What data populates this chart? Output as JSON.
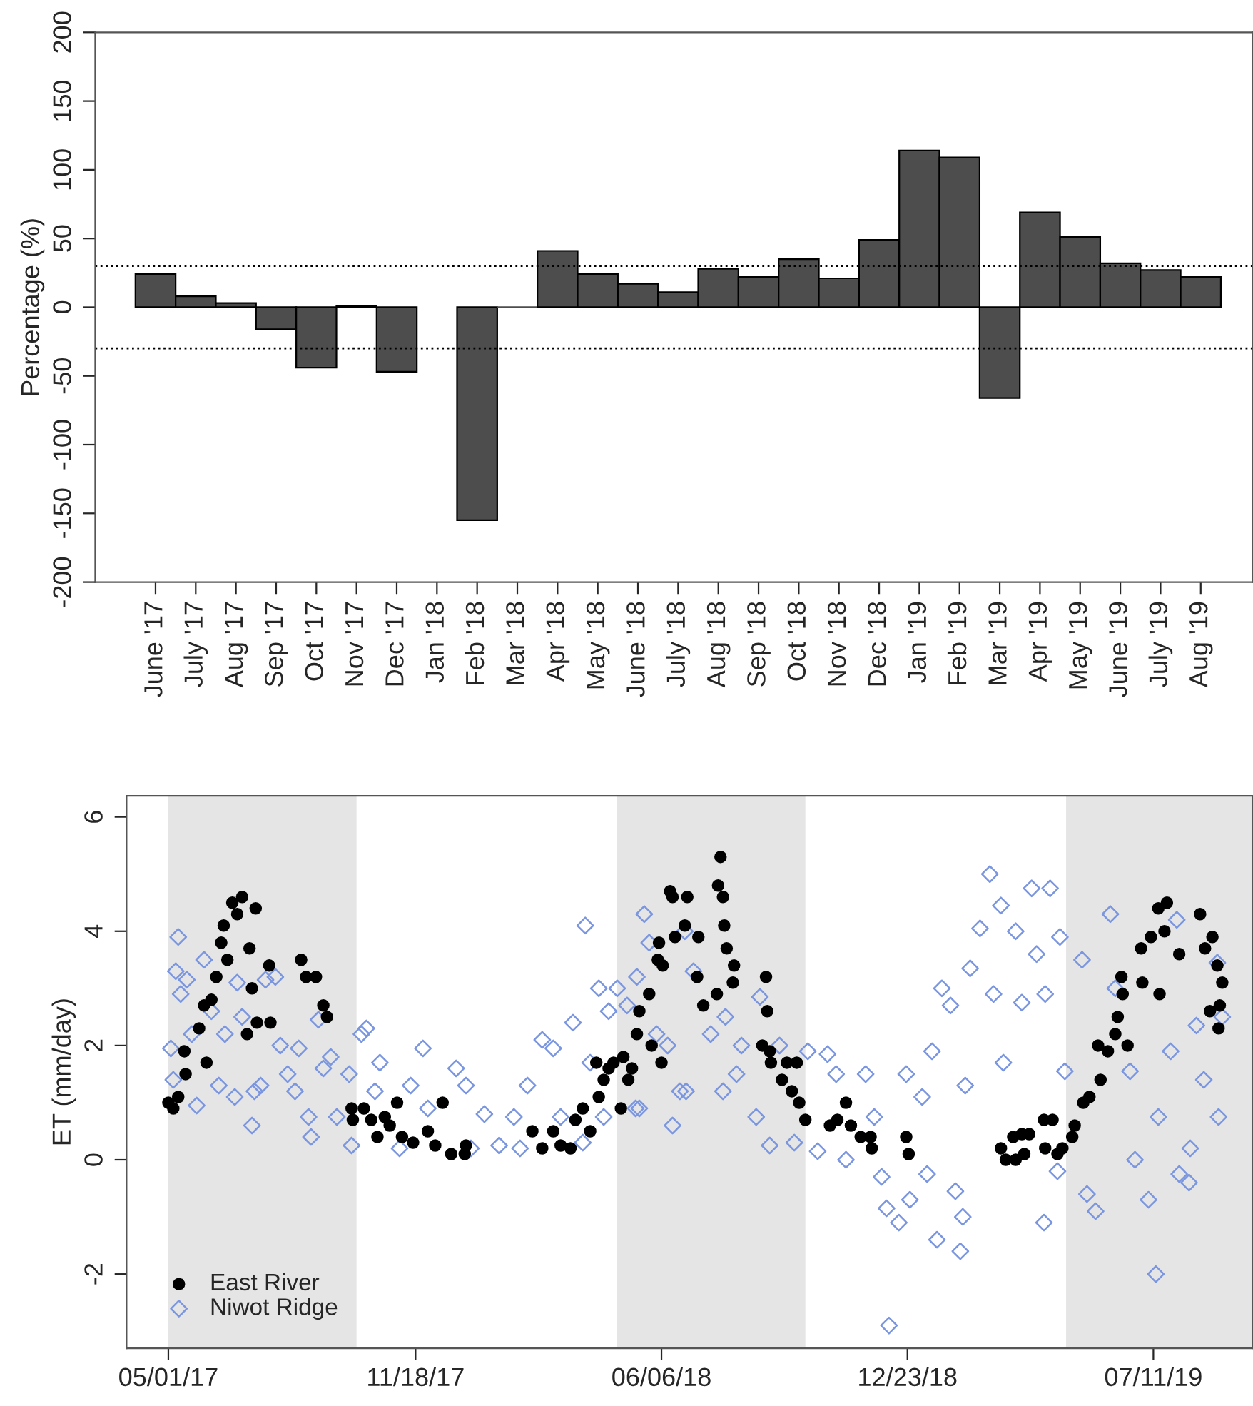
{
  "chart_data": [
    {
      "type": "bar",
      "ylabel": "Percentage (%)",
      "categories": [
        "June '17",
        "July '17",
        "Aug '17",
        "Sep '17",
        "Oct '17",
        "Nov '17",
        "Dec '17",
        "Jan '18",
        "Feb '18",
        "Mar '18",
        "Apr '18",
        "May '18",
        "June '18",
        "July '18",
        "Aug '18",
        "Sep '18",
        "Oct '18",
        "Nov '18",
        "Dec '18",
        "Jan '19",
        "Feb '19",
        "Mar '19",
        "Apr '19",
        "May '19",
        "June '19",
        "July '19",
        "Aug '19"
      ],
      "series": [
        {
          "color": "#4d4d4d",
          "values": [
            24,
            8,
            3,
            -16,
            -44,
            1,
            -47,
            null,
            -155,
            0,
            41,
            24,
            17,
            11,
            28,
            22,
            35,
            21,
            49,
            114,
            109,
            -66,
            69,
            51,
            32,
            27,
            22
          ]
        }
      ],
      "ylim": [
        -200,
        200
      ],
      "yticks": [
        -200,
        -150,
        -100,
        -50,
        0,
        50,
        100,
        150,
        200
      ],
      "ref_lines": [
        {
          "axis": "y",
          "value": 30,
          "color": "#000000",
          "line_style": "dotted"
        },
        {
          "axis": "y",
          "value": -30,
          "color": "#000000",
          "line_style": "dotted"
        }
      ],
      "grid": false,
      "legend": false
    },
    {
      "type": "scatter",
      "ylabel": "ET (mm/day)",
      "xlim": [
        "2017-03-28",
        "2019-09-30"
      ],
      "xticks": [
        {
          "value": "2017-05-01",
          "label": "05/01/17"
        },
        {
          "value": "2017-11-18",
          "label": "11/18/17"
        },
        {
          "value": "2018-06-06",
          "label": "06/06/18"
        },
        {
          "value": "2018-12-23",
          "label": "12/23/18"
        },
        {
          "value": "2019-07-11",
          "label": "07/11/19"
        }
      ],
      "ylim": [
        -3.3,
        6.37
      ],
      "yticks": [
        -2,
        0,
        2,
        4,
        6
      ],
      "bands": [
        {
          "axis": "x",
          "from": "2017-05-01",
          "to": "2017-10-01",
          "color": "#e5e5e5"
        },
        {
          "axis": "x",
          "from": "2018-05-01",
          "to": "2018-10-01",
          "color": "#e5e5e5"
        },
        {
          "axis": "x",
          "from": "2019-05-01",
          "to": "2019-09-30",
          "color": "#e5e5e5"
        }
      ],
      "grid": false,
      "legend": "bottom left",
      "series": [
        {
          "name": "East River",
          "color": "#000000",
          "marker": "circle",
          "x": [
            "2017-05-01",
            "2017-05-05",
            "2017-05-09",
            "2017-05-14",
            "2017-05-15",
            "2017-05-26",
            "2017-06-01",
            "2017-05-30",
            "2017-06-05",
            "2017-06-09",
            "2017-06-13",
            "2017-06-15",
            "2017-06-18",
            "2017-06-22",
            "2017-06-26",
            "2017-06-30",
            "2017-07-04",
            "2017-07-06",
            "2017-07-08",
            "2017-07-11",
            "2017-07-12",
            "2017-07-22",
            "2017-07-23",
            "2017-08-17",
            "2017-08-21",
            "2017-08-29",
            "2017-09-04",
            "2017-09-07",
            "2017-09-27",
            "2017-09-28",
            "2017-10-07",
            "2017-10-13",
            "2017-10-18",
            "2017-10-24",
            "2017-10-28",
            "2017-11-03",
            "2017-11-07",
            "2017-11-16",
            "2017-11-28",
            "2017-12-04",
            "2017-12-10",
            "2017-12-17",
            "2017-12-28",
            "2017-12-29",
            "2018-02-21",
            "2018-03-01",
            "2018-03-10",
            "2018-03-16",
            "2018-03-24",
            "2018-03-28",
            "2018-04-03",
            "2018-04-09",
            "2018-04-14",
            "2018-04-16",
            "2018-04-20",
            "2018-04-24",
            "2018-04-28",
            "2018-05-04",
            "2018-05-06",
            "2018-05-10",
            "2018-05-13",
            "2018-05-17",
            "2018-05-19",
            "2018-05-27",
            "2018-05-29",
            "2018-06-04",
            "2018-06-06",
            "2018-06-07",
            "2018-06-13",
            "2018-06-15",
            "2018-06-27",
            "2018-06-25",
            "2018-06-17",
            "2018-06-03",
            "2018-07-06",
            "2018-07-05",
            "2018-07-22",
            "2018-07-24",
            "2018-07-26",
            "2018-07-27",
            "2018-07-29",
            "2018-08-04",
            "2018-08-03",
            "2018-07-21",
            "2018-07-10",
            "2018-08-30",
            "2018-08-31",
            "2018-08-27",
            "2018-09-02",
            "2018-09-03",
            "2018-09-12",
            "2018-09-16",
            "2018-09-20",
            "2018-09-24",
            "2018-09-26",
            "2018-10-01",
            "2018-10-21",
            "2018-10-27",
            "2018-11-03",
            "2018-11-07",
            "2018-11-15",
            "2018-11-23",
            "2018-11-24",
            "2018-12-22",
            "2018-12-24",
            "2019-03-09",
            "2019-03-13",
            "2019-03-19",
            "2019-03-21",
            "2019-03-28",
            "2019-03-26",
            "2019-04-01",
            "2019-04-13",
            "2019-04-14",
            "2019-04-20",
            "2019-04-24",
            "2019-04-28",
            "2019-05-08",
            "2019-05-06",
            "2019-05-15",
            "2019-05-20",
            "2019-05-29",
            "2019-05-27",
            "2019-06-04",
            "2019-06-10",
            "2019-06-12",
            "2019-06-16",
            "2019-06-20",
            "2019-06-15",
            "2019-07-01",
            "2019-07-02",
            "2019-07-09",
            "2019-07-15",
            "2019-07-16",
            "2019-07-22",
            "2019-07-20",
            "2019-08-01",
            "2019-08-18",
            "2019-08-22",
            "2019-08-28",
            "2019-09-01",
            "2019-09-05",
            "2019-08-26",
            "2019-09-02",
            "2019-09-03"
          ],
          "values": [
            1.0,
            0.9,
            1.1,
            1.9,
            1.5,
            2.3,
            1.7,
            2.7,
            2.8,
            3.2,
            3.8,
            4.1,
            3.5,
            4.5,
            4.3,
            4.6,
            2.2,
            3.7,
            3.0,
            4.4,
            2.4,
            3.4,
            2.4,
            3.5,
            3.2,
            3.2,
            2.7,
            2.5,
            0.9,
            0.7,
            0.9,
            0.7,
            0.4,
            0.75,
            0.6,
            1.0,
            0.4,
            0.3,
            0.5,
            0.25,
            1.0,
            0.1,
            0.1,
            0.25,
            0.5,
            0.2,
            0.5,
            0.25,
            0.2,
            0.7,
            0.9,
            0.5,
            1.7,
            1.1,
            1.4,
            1.6,
            1.7,
            0.9,
            1.8,
            1.4,
            1.6,
            2.2,
            2.6,
            2.9,
            2.0,
            3.8,
            1.7,
            3.4,
            4.7,
            4.6,
            4.6,
            4.1,
            3.9,
            3.5,
            3.9,
            3.2,
            4.8,
            5.3,
            4.6,
            4.1,
            3.7,
            3.4,
            3.1,
            2.9,
            2.7,
            3.2,
            2.6,
            2.0,
            1.9,
            1.7,
            1.4,
            1.7,
            1.2,
            1.7,
            1.0,
            0.7,
            0.6,
            0.7,
            1.0,
            0.6,
            0.4,
            0.4,
            0.2,
            0.4,
            0.1,
            0.2,
            0.0,
            0.4,
            0.0,
            0.1,
            0.45,
            0.45,
            0.7,
            0.2,
            0.7,
            0.1,
            0.2,
            0.6,
            0.4,
            1.0,
            1.1,
            1.4,
            2.0,
            1.9,
            2.2,
            2.5,
            2.9,
            2.0,
            3.2,
            3.7,
            3.1,
            3.9,
            4.4,
            2.9,
            4.5,
            4.0,
            3.6,
            4.3,
            3.7,
            3.9,
            3.4,
            3.1,
            2.6,
            2.3,
            2.7
          ]
        },
        {
          "name": "Niwot Ridge",
          "color": "#7b96e0",
          "marker": "diamond",
          "x": [
            "2017-05-03",
            "2017-05-05",
            "2017-05-09",
            "2017-05-07",
            "2017-05-11",
            "2017-05-16",
            "2017-05-24",
            "2017-05-20",
            "2017-05-30",
            "2017-06-05",
            "2017-06-11",
            "2017-06-16",
            "2017-06-24",
            "2017-06-26",
            "2017-06-30",
            "2017-07-08",
            "2017-07-10",
            "2017-07-15",
            "2017-07-19",
            "2017-07-27",
            "2017-07-31",
            "2017-08-06",
            "2017-08-12",
            "2017-08-15",
            "2017-08-23",
            "2017-08-25",
            "2017-08-31",
            "2017-09-04",
            "2017-09-10",
            "2017-09-15",
            "2017-09-25",
            "2017-09-27",
            "2017-10-05",
            "2017-10-09",
            "2017-10-16",
            "2017-10-20",
            "2017-11-05",
            "2017-11-14",
            "2017-11-24",
            "2017-11-28",
            "2017-12-21",
            "2017-12-29",
            "2018-01-02",
            "2018-01-13",
            "2018-01-25",
            "2018-02-06",
            "2018-02-11",
            "2018-02-17",
            "2018-03-01",
            "2018-03-10",
            "2018-03-16",
            "2018-03-26",
            "2018-04-05",
            "2018-04-03",
            "2018-04-09",
            "2018-04-16",
            "2018-04-20",
            "2018-04-24",
            "2018-05-01",
            "2018-05-09",
            "2018-05-17",
            "2018-05-19",
            "2018-05-23",
            "2018-05-27",
            "2018-06-02",
            "2018-06-15",
            "2018-06-21",
            "2018-05-16",
            "2018-06-25",
            "2018-06-11",
            "2018-07-02",
            "2018-06-26",
            "2018-07-16",
            "2018-07-28",
            "2018-07-26",
            "2018-08-06",
            "2018-08-10",
            "2018-08-25",
            "2018-08-22",
            "2018-09-02",
            "2018-09-10",
            "2018-09-22",
            "2018-10-03",
            "2018-10-11",
            "2018-10-19",
            "2018-10-26",
            "2018-11-03",
            "2018-11-19",
            "2018-11-26",
            "2018-12-02",
            "2018-12-06",
            "2018-12-08",
            "2018-12-16",
            "2018-12-22",
            "2018-12-25",
            "2019-01-04",
            "2019-01-08",
            "2019-01-16",
            "2019-01-12",
            "2019-01-20",
            "2019-01-27",
            "2019-01-31",
            "2019-02-04",
            "2019-02-06",
            "2019-02-08",
            "2019-02-12",
            "2019-02-20",
            "2019-02-28",
            "2019-03-03",
            "2019-03-09",
            "2019-03-11",
            "2019-03-21",
            "2019-03-26",
            "2019-04-03",
            "2019-04-07",
            "2019-04-13",
            "2019-04-14",
            "2019-04-18",
            "2019-04-24",
            "2019-04-26",
            "2019-04-30",
            "2019-05-14",
            "2019-05-18",
            "2019-05-25",
            "2019-06-06",
            "2019-06-10",
            "2019-06-22",
            "2019-06-26",
            "2019-07-07",
            "2019-07-13",
            "2019-07-15",
            "2019-07-25",
            "2019-07-30",
            "2019-08-01",
            "2019-08-09",
            "2019-08-10",
            "2019-08-15",
            "2019-08-21",
            "2019-09-01",
            "2019-09-02",
            "2019-09-05"
          ],
          "values": [
            1.95,
            1.4,
            3.9,
            3.3,
            2.9,
            3.15,
            0.95,
            2.2,
            3.5,
            2.6,
            1.3,
            2.2,
            1.1,
            3.1,
            2.5,
            0.6,
            1.2,
            1.3,
            3.15,
            3.2,
            2.0,
            1.5,
            1.2,
            1.95,
            0.75,
            0.4,
            2.45,
            1.6,
            1.8,
            0.75,
            1.5,
            0.25,
            2.2,
            2.3,
            1.2,
            1.7,
            0.2,
            1.3,
            1.95,
            0.9,
            1.6,
            1.3,
            0.2,
            0.8,
            0.25,
            0.75,
            0.2,
            1.3,
            2.1,
            1.95,
            0.75,
            2.4,
            4.1,
            0.3,
            1.7,
            3.0,
            0.75,
            2.6,
            3.0,
            2.7,
            3.2,
            0.9,
            4.3,
            3.8,
            2.2,
            0.6,
            1.2,
            0.9,
            4.0,
            2.0,
            3.3,
            1.2,
            2.2,
            2.5,
            1.2,
            1.5,
            2.0,
            2.85,
            0.75,
            0.25,
            2.0,
            0.3,
            1.9,
            0.15,
            1.85,
            1.5,
            0.0,
            1.5,
            0.75,
            -0.3,
            -0.85,
            -2.9,
            -1.1,
            1.5,
            -0.7,
            1.1,
            -0.25,
            -1.4,
            1.9,
            3.0,
            2.7,
            -0.55,
            -1.6,
            -1.0,
            1.3,
            3.35,
            4.05,
            5.0,
            2.9,
            4.45,
            1.7,
            4.0,
            2.75,
            4.75,
            3.6,
            -1.1,
            2.9,
            4.75,
            -0.2,
            3.9,
            1.55,
            3.5,
            -0.6,
            -0.9,
            4.3,
            3.0,
            1.55,
            0.0,
            -0.7,
            -2.0,
            0.75,
            1.9,
            4.2,
            -0.25,
            -0.4,
            0.2,
            2.35,
            1.4,
            3.45,
            0.75,
            2.5
          ]
        }
      ]
    }
  ]
}
